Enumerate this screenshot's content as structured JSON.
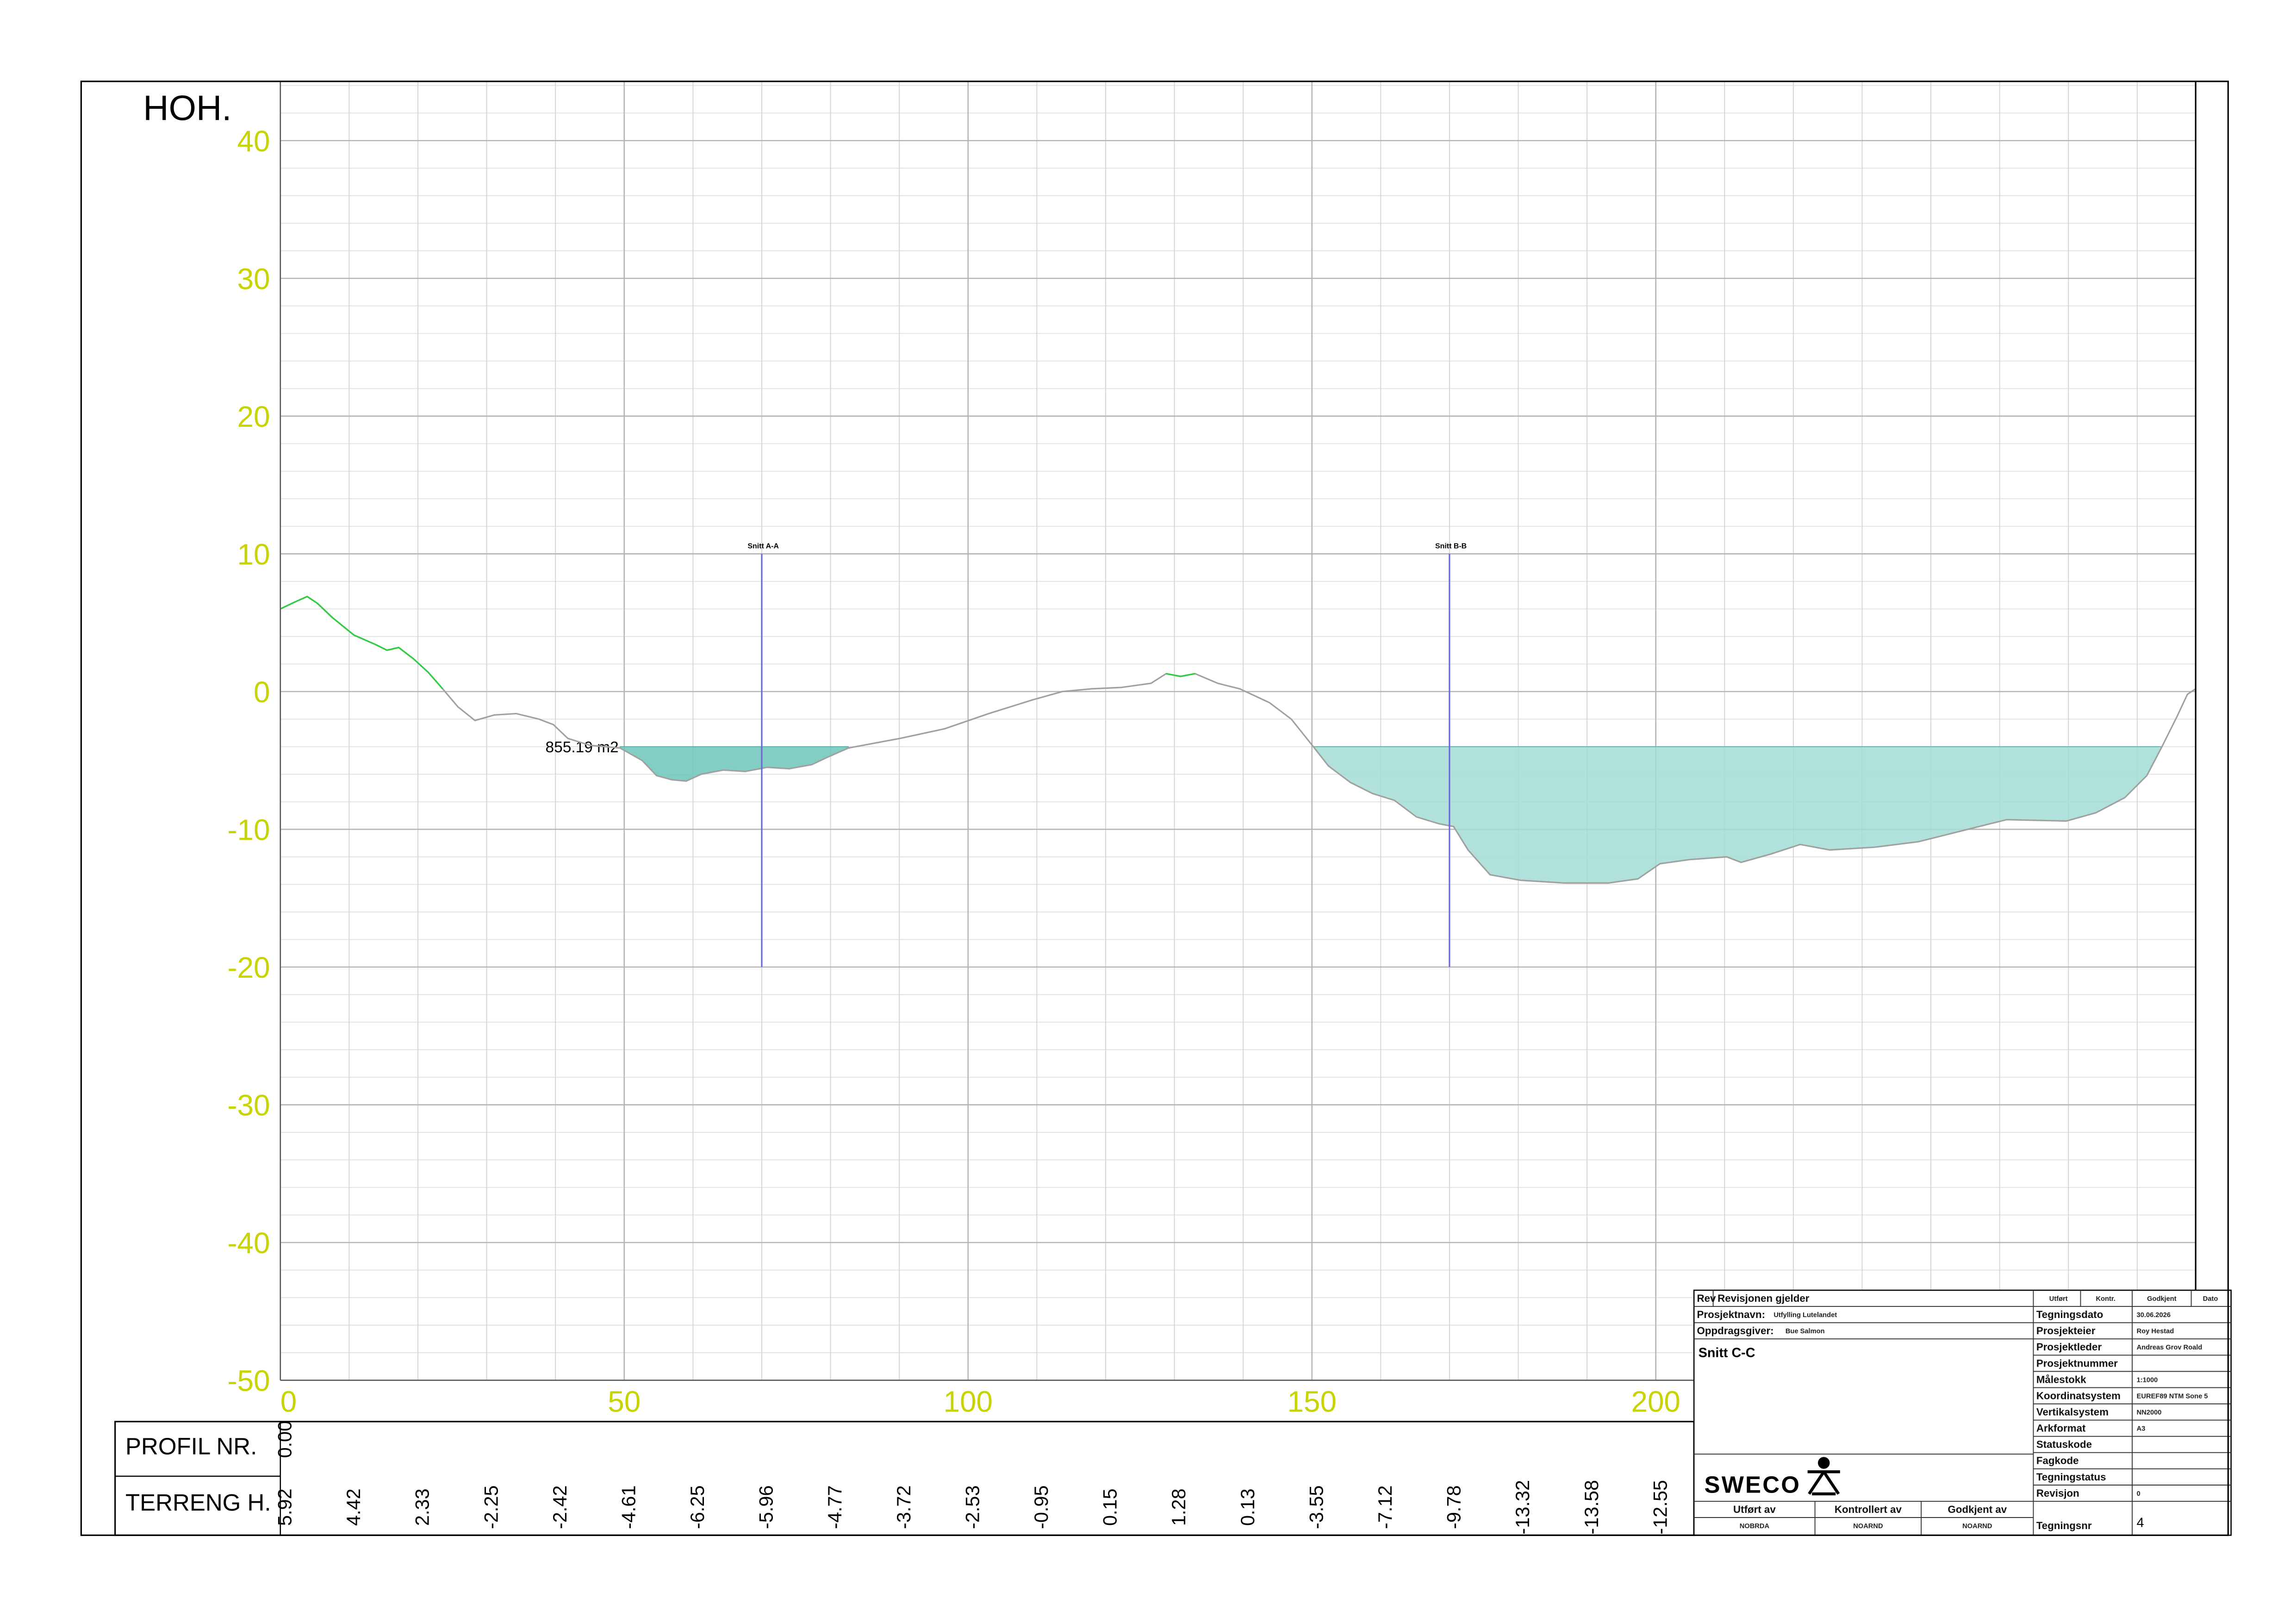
{
  "chart_data": {
    "type": "profile",
    "y_label": "HOH.",
    "xlim": [
      0,
      278.5
    ],
    "ylim": [
      -50,
      44.3
    ],
    "xticks": [
      0,
      50,
      100,
      150,
      200
    ],
    "yticks": [
      -50,
      -40,
      -30,
      -20,
      -10,
      0,
      10,
      20,
      30,
      40
    ],
    "grid": true,
    "minor_grid": {
      "x": 10,
      "y": 2
    },
    "axis_label_color": "#c8d400",
    "series": [
      {
        "color": "#a0a0a0",
        "x": [
          0,
          2.1,
          3.9,
          5.4,
          7.5,
          10.7,
          13.9,
          15.5,
          17.2,
          19.3,
          21.5,
          23.6,
          25.8,
          28.3,
          31.1,
          34.3,
          37.6,
          39.7,
          41.8,
          45,
          49.4,
          52.6,
          54.7,
          56.9,
          59,
          61.2,
          64.4,
          67.6,
          70.8,
          74,
          77.3,
          79.4,
          82.6,
          85.8,
          90.1,
          96.6,
          103,
          109.4,
          113.7,
          118,
          122.3,
          126.6,
          128.8,
          130.9,
          133,
          136.3,
          139.5,
          143.8,
          147,
          150.2,
          152.4,
          155.6,
          158.8,
          162,
          165.2,
          168.5,
          170.6,
          172.7,
          175.9,
          180.3,
          186.7,
          193.1,
          197.4,
          200.6,
          204.9,
          210.3,
          212.4,
          216.7,
          221,
          225.3,
          231.8,
          238.2,
          244.6,
          251,
          259.7,
          264,
          268.2,
          271.4,
          273.6,
          275.8,
          277.3,
          278.5
        ],
        "values": [
          6.0,
          6.5,
          6.9,
          6.4,
          5.4,
          4.1,
          3.4,
          3.0,
          3.2,
          2.4,
          1.4,
          0.2,
          -1.1,
          -2.1,
          -1.7,
          -1.6,
          -2.0,
          -2.4,
          -3.4,
          -3.9,
          -4.1,
          -5.0,
          -6.1,
          -6.4,
          -6.5,
          -6.0,
          -5.7,
          -5.8,
          -5.5,
          -5.6,
          -5.3,
          -4.8,
          -4.1,
          -3.8,
          -3.4,
          -2.7,
          -1.6,
          -0.6,
          0,
          0.2,
          0.3,
          0.6,
          1.3,
          1.1,
          1.3,
          0.6,
          0.2,
          -0.8,
          -2.0,
          -4.0,
          -5.4,
          -6.6,
          -7.4,
          -7.9,
          -9.1,
          -9.6,
          -9.8,
          -11.5,
          -13.3,
          -13.7,
          -13.9,
          -13.9,
          -13.6,
          -12.5,
          -12.2,
          -12.0,
          -12.4,
          -11.8,
          -11.1,
          -11.5,
          -11.3,
          -10.9,
          -10.1,
          -9.3,
          -9.4,
          -8.8,
          -7.7,
          -6.1,
          -4.0,
          -1.8,
          -0.2,
          0.2
        ]
      }
    ],
    "highlight": {
      "color": "#2ecc40",
      "ranges": [
        [
          0,
          24
        ],
        [
          128,
          136
        ]
      ]
    },
    "areas": [
      {
        "xrange": [
          49.4,
          82.6
        ],
        "top": -4,
        "color": "#6cc5bb",
        "label": "855.19 m2"
      },
      {
        "xrange": [
          150.2,
          273.6
        ],
        "top": -4,
        "color": "#a3dcd5"
      }
    ],
    "sections": [
      {
        "label": "Snitt A-A",
        "x": 70,
        "top": 10,
        "bottom": -20
      },
      {
        "label": "Snitt B-B",
        "x": 170,
        "top": 10,
        "bottom": -20
      }
    ],
    "profile_table": {
      "row_labels": [
        "PROFIL NR.",
        "TERRENG H."
      ],
      "profil_nr": [
        "0.00"
      ],
      "terreng_h": [
        "5.92",
        "4.42",
        "2.33",
        "-2.25",
        "-2.42",
        "-4.61",
        "-6.25",
        "-5.96",
        "-4.77",
        "-3.72",
        "-2.53",
        "-0.95",
        "0.15",
        "1.28",
        "0.13",
        "-3.55",
        "-7.12",
        "-9.78",
        "-13.32",
        "-13.58",
        "-12.55"
      ]
    }
  },
  "title_block": {
    "rev_header": [
      "Rev",
      "Revisjonen gjelder"
    ],
    "approval_header": [
      "Utført",
      "Kontr.",
      "Godkjent",
      "Dato"
    ],
    "project_fields": [
      {
        "label": "Prosjektnavn:",
        "value": "Utfylling Lutelandet"
      },
      {
        "label": "Oppdragsgiver:",
        "value": "Bue Salmon"
      }
    ],
    "drawing_title": "Snitt C-C",
    "logo": "SWECO",
    "info": [
      {
        "label": "Tegningsdato",
        "value": "30.06.2026"
      },
      {
        "label": "Prosjekteier",
        "value": "Roy Hestad"
      },
      {
        "label": "Prosjektleder",
        "value": "Andreas Grov Roald"
      },
      {
        "label": "Prosjektnummer"
      },
      {
        "label": "Målestokk",
        "value": "1:1000"
      },
      {
        "label": "Koordinatsystem",
        "value": "EUREF89 NTM Sone 5"
      },
      {
        "label": "Vertikalsystem",
        "value": "NN2000"
      },
      {
        "label": "Arkformat",
        "value": "A3"
      },
      {
        "label": "Statuskode"
      },
      {
        "label": "Fagkode"
      },
      {
        "label": "Tegningstatus"
      },
      {
        "label": "Revisjon",
        "value": "0"
      }
    ],
    "drawing_number": {
      "label": "Tegningsnr",
      "value": "4"
    },
    "signatures": [
      {
        "label": "Utført av",
        "value": "NOBRDA"
      },
      {
        "label": "Kontrollert av",
        "value": "NOARND"
      },
      {
        "label": "Godkjent av",
        "value": "NOARND"
      }
    ]
  }
}
